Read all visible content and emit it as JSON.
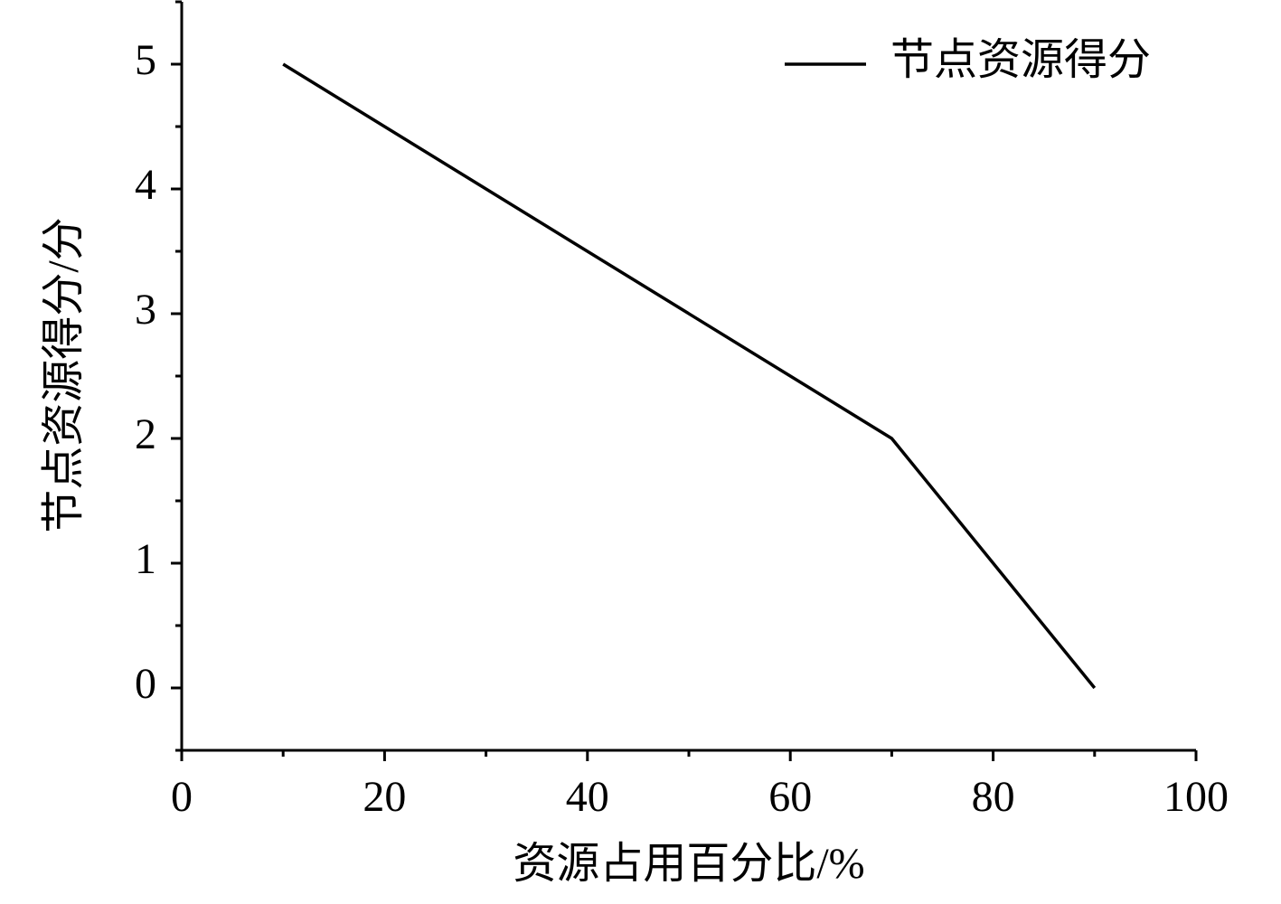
{
  "chart_data": {
    "type": "line",
    "x": [
      10,
      70,
      90
    ],
    "series": [
      {
        "name": "节点资源得分",
        "color": "#000000",
        "values": [
          5,
          2,
          0
        ]
      }
    ],
    "xlabel": "资源占用百分比/%",
    "ylabel": "节点资源得分/分",
    "xlim": [
      0,
      100
    ],
    "xticks": [
      0,
      20,
      40,
      60,
      80,
      100
    ],
    "ylim": [
      -0.5,
      5.5
    ],
    "yticks": [
      0,
      1,
      2,
      3,
      4,
      5
    ],
    "grid": false,
    "legend": "top-right"
  }
}
